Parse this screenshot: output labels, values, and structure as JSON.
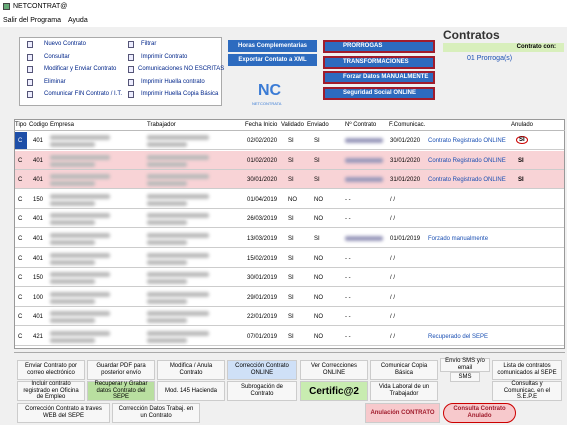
{
  "window": {
    "title": "NETCONTRAT@"
  },
  "menu": [
    "Salir del Programa",
    "Ayuda"
  ],
  "actions_left": [
    "Nuevo Contrato",
    "Consultar",
    "Modificar y Enviar Contrato",
    "Eliminar",
    "Comunicar FIN Contrato / I.T."
  ],
  "actions_right": [
    "Filtrar",
    "Imprimir Contrato",
    "Comunicaciones NO ESCRITAS",
    "Imprimir Huella contrato",
    "Imprimir Huella Copia Básica"
  ],
  "blue_buttons": [
    "Horas Complementarias",
    "Exportar Contato a XML"
  ],
  "logo": {
    "mark": "NC",
    "text": "NETCONTRATA"
  },
  "side_buttons": [
    "PRORROGAS",
    "TRANSFORMACIONES",
    "Forzar Datos MANUALMENTE",
    "Seguridad Social ONLINE"
  ],
  "panel": {
    "title": "Contratos",
    "header": "Contrato con:",
    "item": "01 Prorroga(s)"
  },
  "table": {
    "columns": [
      "Tipo",
      "Codigo",
      "Empresa",
      "Trabajador",
      "Fecha Inicio",
      "Validado",
      "Enviado",
      "Nº Contrato",
      "F.Comunicac.",
      "Anulado"
    ],
    "rows": [
      {
        "tipo": "C",
        "codigo": "401",
        "fecha": "02/02/2020",
        "validado": "SI",
        "enviado": "SI",
        "ncontrato": null,
        "fcom": "30/01/2020",
        "estado": "Contrato Registrado ONLINE",
        "anulado": "SI"
      },
      {
        "tipo": "C",
        "codigo": "401",
        "fecha": "01/02/2020",
        "validado": "SI",
        "enviado": "SI",
        "ncontrato": null,
        "fcom": "31/01/2020",
        "estado": "Contrato Registrado ONLINE",
        "anulado": "SI"
      },
      {
        "tipo": "C",
        "codigo": "401",
        "fecha": "30/01/2020",
        "validado": "SI",
        "enviado": "SI",
        "ncontrato": null,
        "fcom": "31/01/2020",
        "estado": "Contrato Registrado ONLINE",
        "anulado": "SI"
      },
      {
        "tipo": "C",
        "codigo": "150",
        "fecha": "01/04/2019",
        "validado": "NO",
        "enviado": "NO",
        "ncontrato": "- -",
        "fcom": "/ /"
      },
      {
        "tipo": "C",
        "codigo": "401",
        "fecha": "26/03/2019",
        "validado": "SI",
        "enviado": "NO",
        "ncontrato": "- -",
        "fcom": "/ /"
      },
      {
        "tipo": "C",
        "codigo": "401",
        "fecha": "13/03/2019",
        "validado": "SI",
        "enviado": "SI",
        "ncontrato": null,
        "fcom": "01/01/2019",
        "estado": "Forzado manualmente"
      },
      {
        "tipo": "C",
        "codigo": "401",
        "fecha": "15/02/2019",
        "validado": "SI",
        "enviado": "NO",
        "ncontrato": "- -",
        "fcom": "/ /"
      },
      {
        "tipo": "C",
        "codigo": "150",
        "fecha": "30/01/2019",
        "validado": "SI",
        "enviado": "NO",
        "ncontrato": "- -",
        "fcom": "/ /"
      },
      {
        "tipo": "C",
        "codigo": "100",
        "fecha": "29/01/2019",
        "validado": "SI",
        "enviado": "NO",
        "ncontrato": "- -",
        "fcom": "/ /"
      },
      {
        "tipo": "C",
        "codigo": "401",
        "fecha": "22/01/2019",
        "validado": "SI",
        "enviado": "NO",
        "ncontrato": "- -",
        "fcom": "/ /"
      },
      {
        "tipo": "C",
        "codigo": "421",
        "fecha": "07/01/2019",
        "validado": "SI",
        "enviado": "NO",
        "ncontrato": "- -",
        "fcom": "/ /",
        "estado": "Recuperado del SEPE"
      }
    ]
  },
  "toolbar": [
    "Enviar Contrato por correo electrónico",
    "Guardar PDF para posterior envío",
    "Modifica / Anula Contrato",
    "Corrección Contrato ONLINE",
    "Ver Correcciones ONLINE",
    "Comunicar Copia Básica",
    "Envío SMS y/o email",
    "SMS",
    "Lista de contratos comunicados al SEPE",
    "Incluir contrato registrado en Oficina de Empleo",
    "Recuperar y Grabar datos Contrato del SEPE",
    "Mod. 145 Hacienda",
    "Subrogación de Contrato",
    "Certific@2",
    "Vida Laboral de un Trabajador",
    "Consultas y Comunicac. en el S.E.P.E",
    "Corrección Contrato a traves WEB del SEPE",
    "Corrección Datos Trabaj. en un Contrato",
    "Anulación CONTRATO",
    "Consulta Contrato Anulado"
  ]
}
